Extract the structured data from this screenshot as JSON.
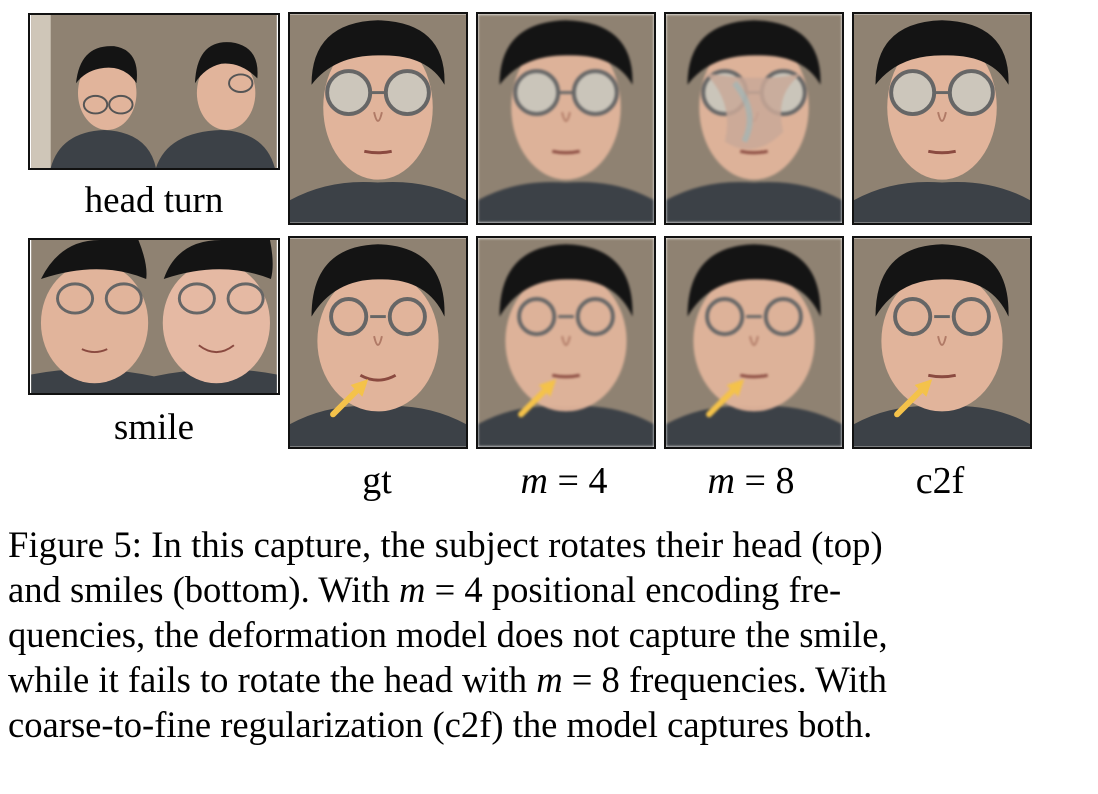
{
  "rows": [
    {
      "label": "head turn"
    },
    {
      "label": "smile"
    }
  ],
  "columns": [
    {
      "label": "gt"
    },
    {
      "label_var": "m",
      "label_op": " = ",
      "label_num": "4"
    },
    {
      "label_var": "m",
      "label_op": " = ",
      "label_num": "8"
    },
    {
      "label": "c2f"
    }
  ],
  "caption": {
    "line1_a": "Figure 5: In this capture, the subject rotates their head (top)",
    "line2_a": "and smiles (bottom). With ",
    "line2_var": "m",
    "line2_b": " = 4 positional encoding fre-",
    "line3": "quencies, the deformation model does not capture the smile,",
    "line4_a": "while it fails to rotate the head with ",
    "line4_var": "m",
    "line4_b": " = 8 frequencies. With",
    "line5": "coarse-to-fine regularization (c2f) the model captures both."
  },
  "colors": {
    "arrow": "#f4c24a",
    "background_wall": "#8f8272",
    "skin": "#e1b49b",
    "hair": "#141414",
    "shirt": "#3c4147"
  }
}
